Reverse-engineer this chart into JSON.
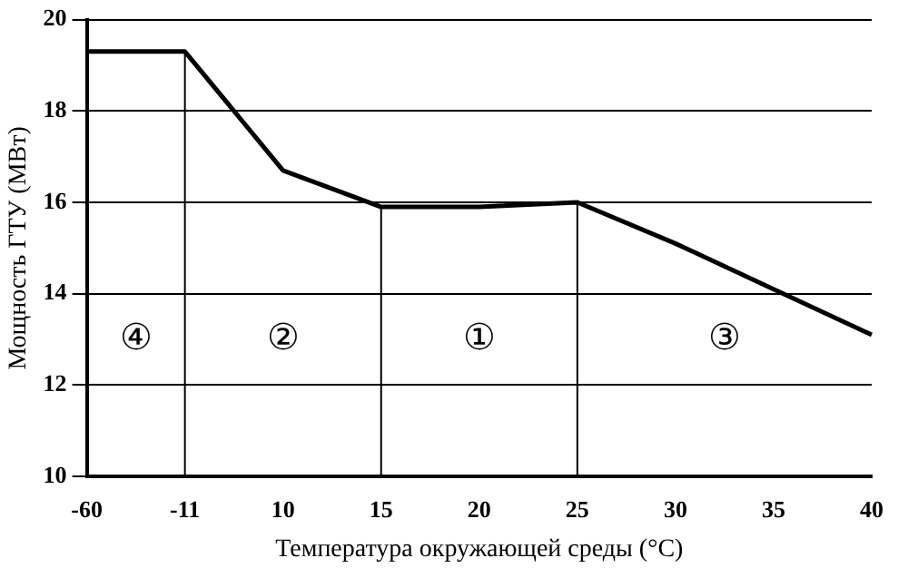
{
  "chart_data": {
    "type": "line",
    "xlabel": "Температура окружающей среды (°C)",
    "ylabel": "Мощность ГТУ (МВт)",
    "categories": [
      "-60",
      "-11",
      "10",
      "15",
      "20",
      "25",
      "30",
      "35",
      "40"
    ],
    "series": [
      {
        "color": "#000000",
        "values": [
          19.3,
          19.3,
          16.7,
          15.9,
          15.9,
          16.0,
          15.1,
          14.1,
          13.1
        ]
      }
    ],
    "ylim": [
      10,
      20
    ],
    "yticks": [
      10,
      12,
      14,
      16,
      18,
      20
    ],
    "grid": "y",
    "legend": false,
    "marker": "none",
    "ref_lines": [
      {
        "axis": "x",
        "value": "-11"
      },
      {
        "axis": "x",
        "value": "15"
      },
      {
        "axis": "x",
        "value": "25"
      }
    ],
    "annotations": [
      "④",
      "②",
      "①",
      "③"
    ]
  }
}
